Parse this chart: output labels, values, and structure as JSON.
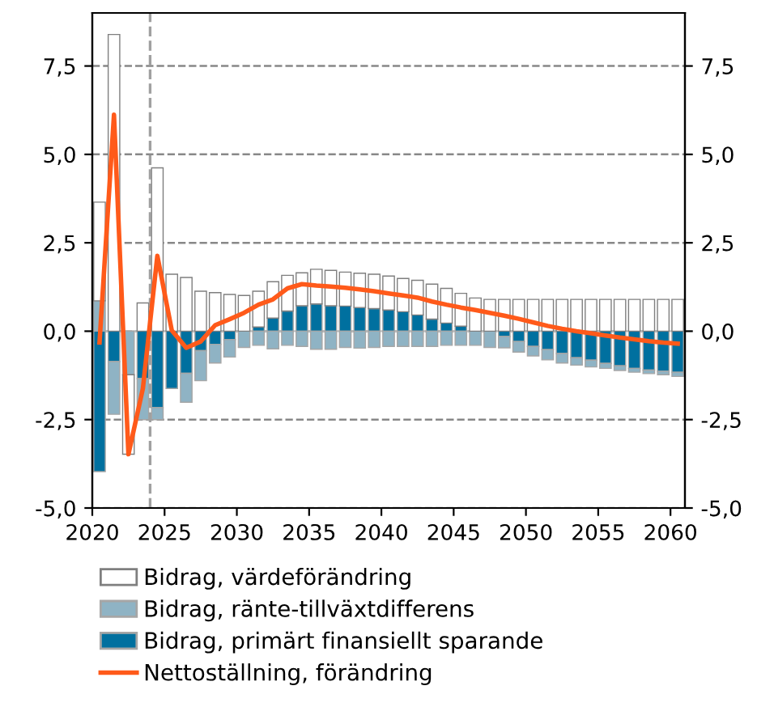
{
  "chart_data": {
    "type": "bar",
    "stacked": true,
    "x": [
      2020.5,
      2021.5,
      2022.5,
      2023.5,
      2024.5,
      2025.5,
      2026.5,
      2027.5,
      2028.5,
      2029.5,
      2030.5,
      2031.5,
      2032.5,
      2033.5,
      2034.5,
      2035.5,
      2036.5,
      2037.5,
      2038.5,
      2039.5,
      2040.5,
      2041.5,
      2042.5,
      2043.5,
      2044.5,
      2045.5,
      2046.5,
      2047.5,
      2048.5,
      2049.5,
      2050.5,
      2051.5,
      2052.5,
      2053.5,
      2054.5,
      2055.5,
      2056.5,
      2057.5,
      2058.5,
      2059.5,
      2060.5
    ],
    "series": [
      {
        "name": "Bidrag, primärt finansiellt sparande",
        "color": "#00709f",
        "values": [
          -3.97,
          -0.86,
          0,
          -1.34,
          -2.16,
          -1.62,
          -1.19,
          -0.55,
          -0.37,
          -0.24,
          null,
          0.12,
          0.37,
          0.57,
          0.72,
          0.77,
          0.72,
          0.71,
          0.67,
          0.64,
          0.6,
          0.55,
          0.46,
          0.34,
          0.23,
          0.14,
          null,
          null,
          -0.15,
          -0.29,
          -0.43,
          -0.52,
          -0.63,
          -0.75,
          -0.82,
          -0.91,
          -0.98,
          -1.05,
          -1.1,
          -1.13,
          -1.16
        ]
      },
      {
        "name": "Bidrag, ränte-tillväxtdifferens",
        "color": "#8fb3c4",
        "values": [
          0.86,
          -1.49,
          -1.23,
          -1.16,
          -0.34,
          0,
          -0.82,
          -0.85,
          -0.53,
          -0.49,
          -0.46,
          -0.4,
          -0.5,
          -0.4,
          -0.43,
          -0.51,
          -0.51,
          -0.46,
          -0.48,
          -0.46,
          -0.43,
          -0.43,
          -0.43,
          -0.43,
          -0.4,
          -0.4,
          -0.4,
          -0.46,
          -0.32,
          -0.3,
          -0.27,
          -0.29,
          -0.27,
          -0.21,
          -0.19,
          -0.14,
          -0.13,
          -0.11,
          -0.1,
          -0.1,
          -0.12
        ]
      },
      {
        "name": "Bidrag, värdeförändring",
        "color": "#ffffff",
        "values": [
          2.79,
          8.39,
          -2.25,
          0.8,
          4.62,
          1.61,
          1.52,
          1.13,
          1.09,
          1.04,
          1.01,
          1.01,
          1.03,
          1.01,
          0.93,
          0.98,
          1.0,
          0.96,
          0.97,
          0.97,
          0.96,
          0.94,
          0.98,
          0.99,
          0.98,
          0.93,
          0.94,
          0.9,
          0.9,
          0.9,
          0.9,
          0.9,
          0.9,
          0.9,
          0.9,
          0.9,
          0.9,
          0.9,
          0.9,
          0.9,
          0.9
        ]
      },
      {
        "name": "Nettoställning, förändring",
        "type": "line",
        "color": "#ff5a1a",
        "values": [
          -0.32,
          6.12,
          -3.48,
          -1.62,
          2.13,
          0.02,
          -0.47,
          -0.29,
          0.17,
          0.34,
          0.52,
          0.75,
          0.9,
          1.21,
          1.33,
          1.29,
          1.26,
          1.23,
          1.18,
          1.13,
          1.07,
          1.01,
          0.95,
          0.84,
          0.75,
          0.67,
          0.6,
          0.52,
          0.44,
          0.35,
          0.25,
          0.15,
          0.07,
          0.0,
          -0.06,
          -0.12,
          -0.18,
          -0.23,
          -0.28,
          -0.32,
          -0.35
        ]
      }
    ],
    "xlim": [
      2020,
      2061
    ],
    "xticks": [
      2020,
      2025,
      2030,
      2035,
      2040,
      2045,
      2050,
      2055,
      2060
    ],
    "ylim": [
      -5,
      9
    ],
    "yticks": [
      {
        "value": -5,
        "label": "-5,0"
      },
      {
        "value": -2.5,
        "label": "-2,5"
      },
      {
        "value": 0,
        "label": "0,0"
      },
      {
        "value": 2.5,
        "label": "2,5"
      },
      {
        "value": 5,
        "label": "5,0"
      },
      {
        "value": 7.5,
        "label": "7,5"
      }
    ],
    "y2lim": [
      -5,
      9
    ],
    "y2ticks": [
      {
        "value": -5,
        "label": "-5,0"
      },
      {
        "value": -2.5,
        "label": "-2,5"
      },
      {
        "value": 0,
        "label": "0,0"
      },
      {
        "value": 2.5,
        "label": "2,5"
      },
      {
        "value": 5,
        "label": "5,0"
      },
      {
        "value": 7.5,
        "label": "7,5"
      }
    ],
    "ref_lines": [
      {
        "axis": "x",
        "value": 2024,
        "color": "#a0a0a0",
        "line_style": "dashed"
      }
    ],
    "grid": "y",
    "legend": "bottom"
  }
}
